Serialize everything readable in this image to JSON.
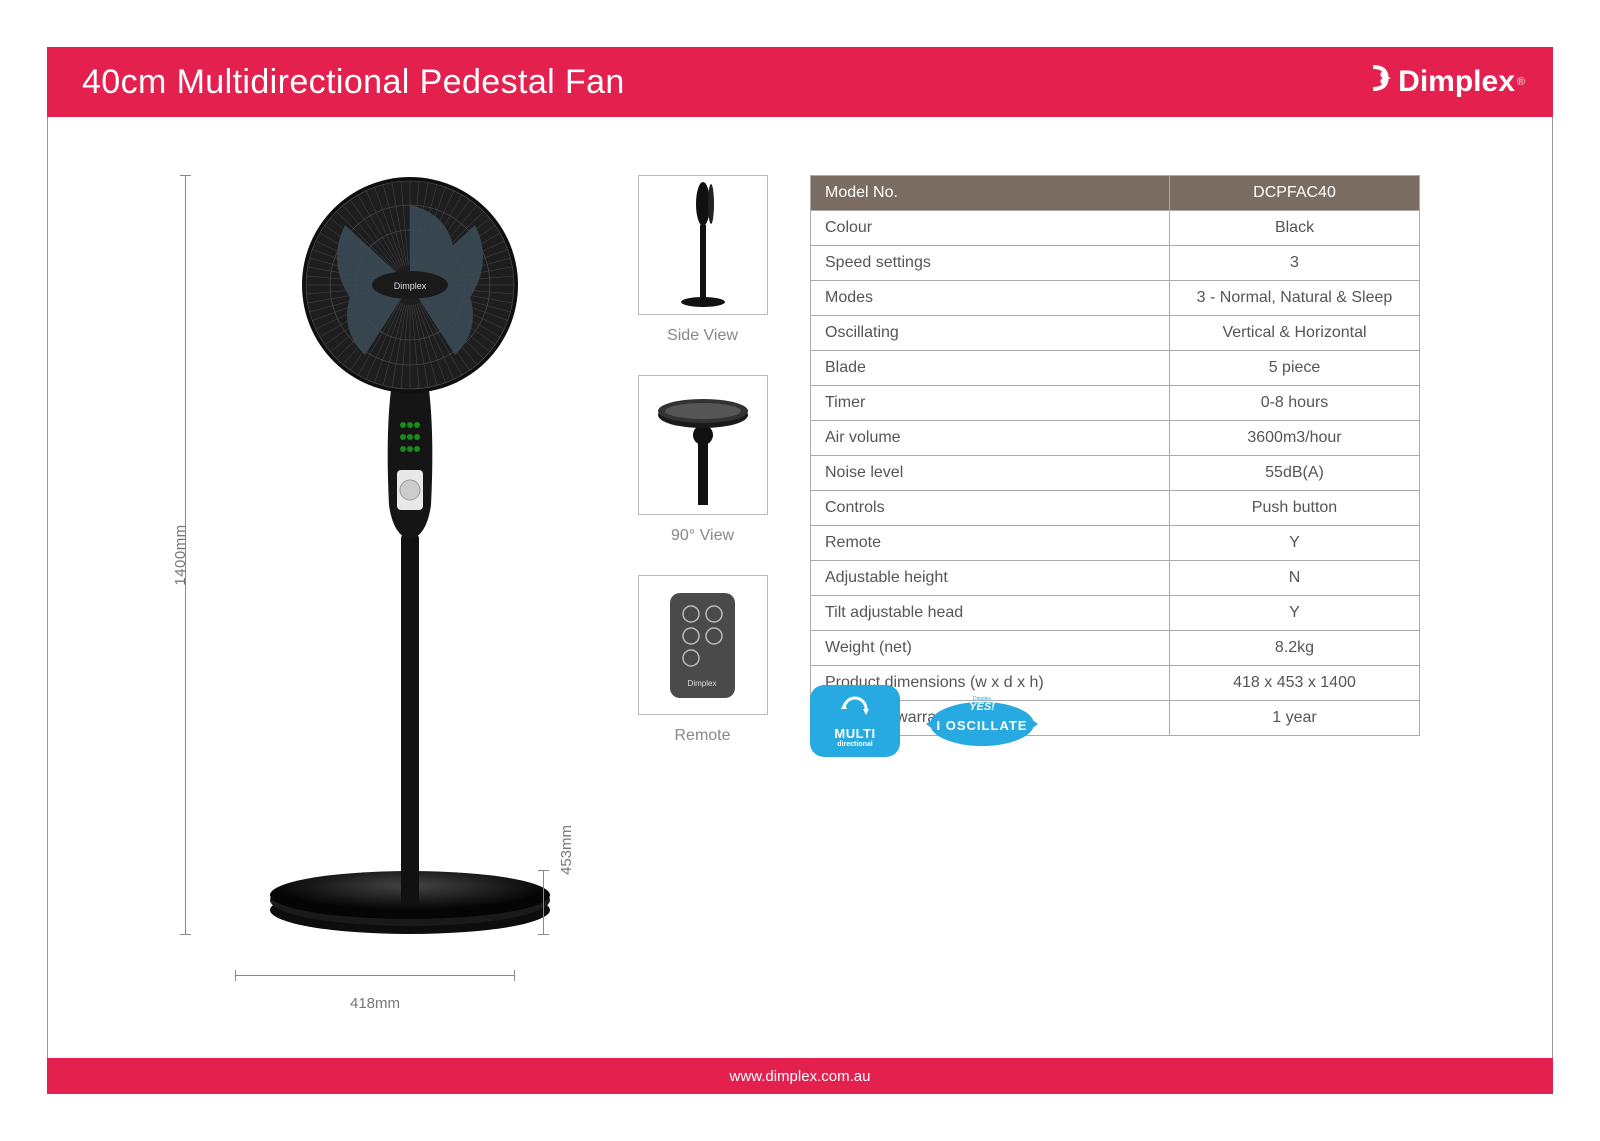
{
  "header": {
    "title": "40cm Multidirectional Pedestal Fan",
    "brand": "Dimplex"
  },
  "dimensions": {
    "height_label": "1400mm",
    "width_label": "418mm",
    "depth_label": "453mm"
  },
  "thumbnails": [
    {
      "label": "Side View"
    },
    {
      "label": "90° View"
    },
    {
      "label": "Remote"
    }
  ],
  "spec_header": {
    "label": "Model No.",
    "value": "DCPFAC40"
  },
  "specs": [
    {
      "label": "Colour",
      "value": "Black"
    },
    {
      "label": "Speed settings",
      "value": "3"
    },
    {
      "label": "Modes",
      "value": "3 - Normal, Natural & Sleep"
    },
    {
      "label": "Oscillating",
      "value": "Vertical & Horizontal"
    },
    {
      "label": "Blade",
      "value": "5 piece"
    },
    {
      "label": "Timer",
      "value": "0-8 hours"
    },
    {
      "label": "Air volume",
      "value": "3600m3/hour"
    },
    {
      "label": "Noise level",
      "value": "55dB(A)"
    },
    {
      "label": "Controls",
      "value": "Push button"
    },
    {
      "label": "Remote",
      "value": "Y"
    },
    {
      "label": "Adjustable height",
      "value": "N"
    },
    {
      "label": "Tilt adjustable head",
      "value": "Y"
    },
    {
      "label": "Weight (net)",
      "value": "8.2kg"
    },
    {
      "label": "Product dimensions (w x d x h)",
      "value": "418 x 453 x 1400"
    },
    {
      "label": "Domestic warranty",
      "value": "1 year"
    }
  ],
  "badges": {
    "multi_line1": "MULTI",
    "multi_line2": "directional",
    "oscillate_top": "YES!",
    "oscillate_main": "I OSCILLATE"
  },
  "footer": {
    "url": "www.dimplex.com.au"
  },
  "colors": {
    "brand_red": "#e4204e",
    "table_header": "#7b6c62",
    "badge_blue": "#27aae1",
    "text_muted": "#777777",
    "border": "#aaaaaa"
  }
}
